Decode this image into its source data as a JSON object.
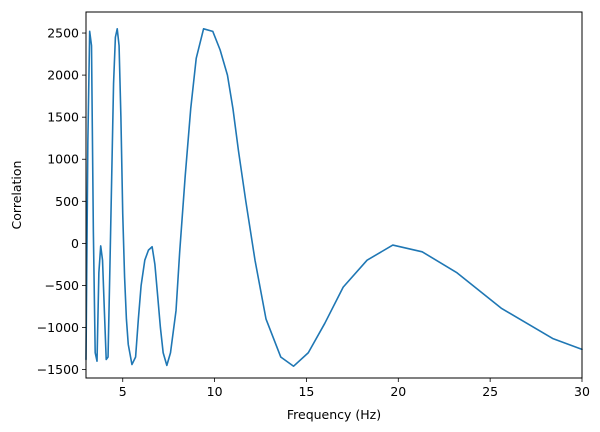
{
  "chart_data": {
    "type": "line",
    "title": "",
    "xlabel": "Frequency (Hz)",
    "ylabel": "Correlation",
    "xlim": [
      3,
      30
    ],
    "ylim": [
      -1600,
      2750
    ],
    "xticks": [
      5,
      10,
      15,
      20,
      25,
      30
    ],
    "yticks": [
      -1500,
      -1000,
      -500,
      0,
      500,
      1000,
      1500,
      2000,
      2500
    ],
    "grid": false,
    "legend": "none",
    "series": [
      {
        "color": "#1f77b4",
        "x": [
          3.0,
          3.1,
          3.2,
          3.3,
          3.4,
          3.5,
          3.6,
          3.7,
          3.8,
          3.9,
          4.0,
          4.1,
          4.2,
          4.3,
          4.4,
          4.5,
          4.6,
          4.7,
          4.8,
          4.9,
          5.0,
          5.1,
          5.2,
          5.3,
          5.5,
          5.7,
          5.85,
          6.0,
          6.2,
          6.4,
          6.6,
          6.75,
          6.9,
          7.05,
          7.2,
          7.4,
          7.6,
          7.9,
          8.1,
          8.4,
          8.7,
          9.0,
          9.4,
          9.9,
          10.3,
          10.7,
          11.0,
          11.3,
          11.7,
          12.2,
          12.8,
          13.6,
          14.3,
          15.1,
          16.0,
          17.0,
          18.3,
          19.7,
          21.3,
          23.2,
          25.6,
          28.4,
          30.0
        ],
        "y": [
          -1380,
          1200,
          2520,
          2350,
          150,
          -1300,
          -1400,
          -350,
          -30,
          -200,
          -800,
          -1380,
          -1350,
          -300,
          800,
          1900,
          2450,
          2550,
          2350,
          1500,
          350,
          -400,
          -900,
          -1200,
          -1440,
          -1350,
          -900,
          -500,
          -200,
          -80,
          -40,
          -250,
          -620,
          -1000,
          -1300,
          -1450,
          -1300,
          -800,
          -100,
          800,
          1600,
          2200,
          2550,
          2520,
          2300,
          2000,
          1600,
          1100,
          500,
          -200,
          -900,
          -1350,
          -1460,
          -1300,
          -950,
          -520,
          -200,
          -20,
          -100,
          -350,
          -770,
          -1130,
          -1260
        ]
      }
    ]
  }
}
